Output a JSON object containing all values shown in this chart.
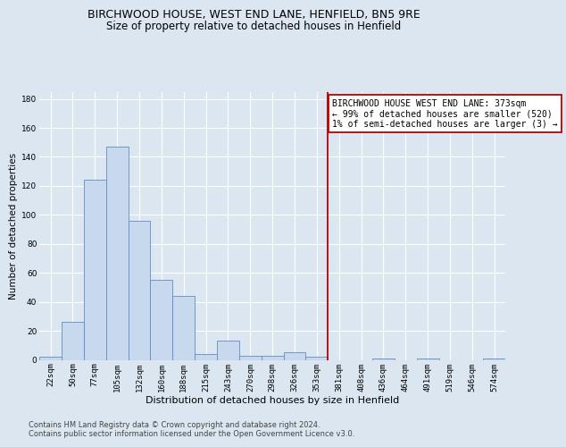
{
  "title": "BIRCHWOOD HOUSE, WEST END LANE, HENFIELD, BN5 9RE",
  "subtitle": "Size of property relative to detached houses in Henfield",
  "xlabel": "Distribution of detached houses by size in Henfield",
  "ylabel": "Number of detached properties",
  "bar_labels": [
    "22sqm",
    "50sqm",
    "77sqm",
    "105sqm",
    "132sqm",
    "160sqm",
    "188sqm",
    "215sqm",
    "243sqm",
    "270sqm",
    "298sqm",
    "326sqm",
    "353sqm",
    "381sqm",
    "408sqm",
    "436sqm",
    "464sqm",
    "491sqm",
    "519sqm",
    "546sqm",
    "574sqm"
  ],
  "bar_heights": [
    2,
    26,
    124,
    147,
    96,
    55,
    44,
    4,
    13,
    3,
    3,
    5,
    2,
    0,
    0,
    1,
    0,
    1,
    0,
    0,
    1
  ],
  "bar_color": "#c8d9ed",
  "bar_edge_color": "#5b8ec4",
  "ylim": [
    0,
    185
  ],
  "yticks": [
    0,
    20,
    40,
    60,
    80,
    100,
    120,
    140,
    160,
    180
  ],
  "vline_x": 12.5,
  "vline_color": "#bb0000",
  "annotation_text": "BIRCHWOOD HOUSE WEST END LANE: 373sqm\n← 99% of detached houses are smaller (520)\n1% of semi-detached houses are larger (3) →",
  "annotation_box_color": "#ffffff",
  "annotation_box_edge": "#bb0000",
  "bg_color": "#dce6f1",
  "title_fontsize": 9,
  "subtitle_fontsize": 8.5,
  "xlabel_fontsize": 8,
  "ylabel_fontsize": 7.5,
  "tick_fontsize": 6.5,
  "annotation_fontsize": 7,
  "footer_fontsize": 6,
  "footer": "Contains HM Land Registry data © Crown copyright and database right 2024.\nContains public sector information licensed under the Open Government Licence v3.0."
}
